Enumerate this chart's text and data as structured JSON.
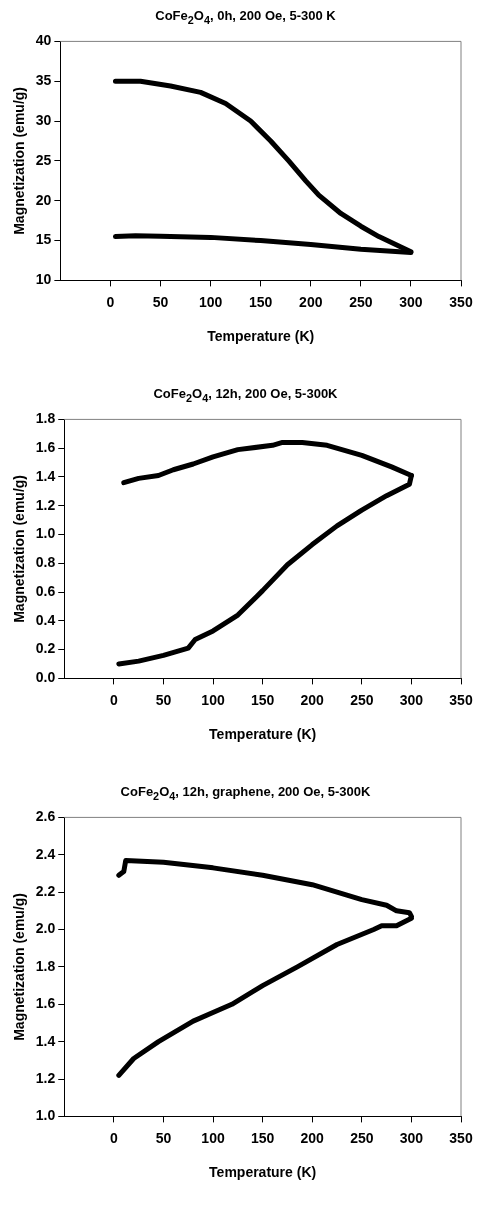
{
  "chart_data": [
    {
      "type": "line",
      "title": "CoFe$_{2}$O$_{4}$, 0h, 200 Oe, 5-300 K",
      "xlabel": "Temperature (K)",
      "ylabel": "Magnetization (emu/g)",
      "xlim": [
        -50,
        350
      ],
      "xticks": [
        0,
        50,
        100,
        150,
        200,
        250,
        300,
        350
      ],
      "ylim": [
        10,
        40
      ],
      "yticks": [
        10,
        15,
        20,
        25,
        30,
        35,
        40
      ],
      "grid": false,
      "series": [
        {
          "color": "#000000",
          "x": [
            5,
            25,
            50,
            100,
            150,
            200,
            250,
            300
          ],
          "values": [
            15.5,
            15.6,
            15.55,
            15.4,
            15.0,
            14.5,
            13.9,
            13.5
          ]
        },
        {
          "color": "#000000",
          "x": [
            5,
            30,
            60,
            90,
            115,
            140,
            160,
            178,
            195,
            208,
            230,
            250,
            268,
            290,
            300
          ],
          "values": [
            35,
            35,
            34.4,
            33.6,
            32.2,
            30,
            27.5,
            25,
            22.5,
            20.7,
            18.4,
            16.8,
            15.5,
            14.2,
            13.6
          ]
        }
      ]
    },
    {
      "type": "line",
      "title": "CoFe$_{2}$O$_{4}$, 12h, 200 Oe, 5-300K",
      "xlabel": "Temperature (K)",
      "ylabel": "Magnetization (emu/g)",
      "xlim": [
        -50,
        350
      ],
      "xticks": [
        0,
        50,
        100,
        150,
        200,
        250,
        300,
        350
      ],
      "ylim": [
        0,
        1.8
      ],
      "yticks": [
        {
          "value": 0,
          "label": "0.0"
        },
        0.2,
        0.4,
        0.6,
        0.8,
        {
          "value": 1,
          "label": "1.0"
        },
        1.2,
        1.4,
        1.6,
        1.8
      ],
      "grid": false,
      "series": [
        {
          "color": "#000000",
          "x": [
            5,
            25,
            50,
            75,
            82,
            100,
            125,
            150,
            175,
            200,
            225,
            250,
            275,
            298,
            300
          ],
          "values": [
            0.1,
            0.12,
            0.16,
            0.21,
            0.27,
            0.33,
            0.44,
            0.61,
            0.79,
            0.93,
            1.06,
            1.17,
            1.27,
            1.35,
            1.41
          ]
        },
        {
          "color": "#000000",
          "x": [
            10,
            25,
            45,
            60,
            80,
            100,
            125,
            160,
            170,
            190,
            215,
            250,
            280,
            300
          ],
          "values": [
            1.36,
            1.39,
            1.41,
            1.45,
            1.49,
            1.54,
            1.59,
            1.62,
            1.64,
            1.64,
            1.62,
            1.55,
            1.47,
            1.41
          ]
        }
      ]
    },
    {
      "type": "line",
      "title": "CoFe$_{2}$O$_{4}$, 12h, graphene, 200 Oe, 5-300K",
      "xlabel": "Temperature (K)",
      "ylabel": "Magnetization (emu/g)",
      "xlim": [
        -50,
        350
      ],
      "xticks": [
        0,
        50,
        100,
        150,
        200,
        250,
        300,
        350
      ],
      "ylim": [
        1,
        2.6
      ],
      "yticks": [
        {
          "value": 1,
          "label": "1.0"
        },
        1.2,
        1.4,
        1.6,
        1.8,
        {
          "value": 2,
          "label": "2.0"
        },
        2.2,
        2.4,
        2.6
      ],
      "grid": false,
      "series": [
        {
          "color": "#000000",
          "x": [
            5,
            20,
            45,
            80,
            119,
            150,
            185,
            225,
            262,
            270,
            285,
            300
          ],
          "values": [
            1.22,
            1.31,
            1.4,
            1.51,
            1.6,
            1.7,
            1.8,
            1.92,
            2.0,
            2.02,
            2.02,
            2.06
          ]
        },
        {
          "color": "#000000",
          "x": [
            5,
            10,
            12,
            50,
            100,
            150,
            200,
            250,
            275,
            285,
            298,
            300
          ],
          "values": [
            2.29,
            2.31,
            2.37,
            2.36,
            2.33,
            2.29,
            2.24,
            2.16,
            2.13,
            2.1,
            2.09,
            2.07
          ]
        }
      ]
    }
  ]
}
